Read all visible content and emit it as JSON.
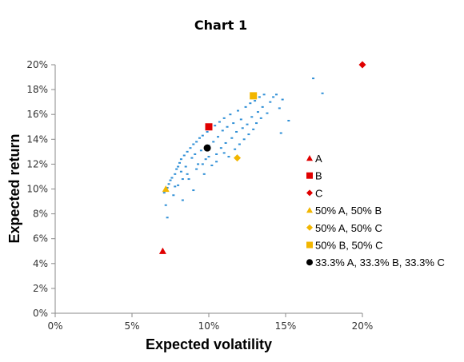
{
  "chart_data": {
    "type": "scatter",
    "title": "Chart 1",
    "xlabel": "Expected volatility",
    "ylabel": "Expected return",
    "xlim": [
      0,
      0.2
    ],
    "ylim": [
      0,
      0.2
    ],
    "x_ticks": [
      "0%",
      "5%",
      "10%",
      "15%",
      "20%"
    ],
    "y_ticks": [
      "0%",
      "2%",
      "4%",
      "6%",
      "8%",
      "10%",
      "12%",
      "14%",
      "16%",
      "18%",
      "20%"
    ],
    "grid": false,
    "legend_position": "right",
    "series": [
      {
        "name": "A",
        "marker": "triangle",
        "color": "#e00000",
        "points": [
          {
            "x": 0.07,
            "y": 0.05
          }
        ]
      },
      {
        "name": "B",
        "marker": "square",
        "color": "#e00000",
        "points": [
          {
            "x": 0.1,
            "y": 0.15
          }
        ]
      },
      {
        "name": "C",
        "marker": "diamond",
        "color": "#e00000",
        "points": [
          {
            "x": 0.2,
            "y": 0.2
          }
        ]
      },
      {
        "name": "50% A, 50% B",
        "marker": "triangle",
        "color": "#f2b600",
        "points": [
          {
            "x": 0.072,
            "y": 0.1
          }
        ]
      },
      {
        "name": "50% A, 50% C",
        "marker": "diamond",
        "color": "#f2b600",
        "points": [
          {
            "x": 0.1185,
            "y": 0.125
          }
        ]
      },
      {
        "name": "50% B, 50% C",
        "marker": "square",
        "color": "#f2b600",
        "points": [
          {
            "x": 0.129,
            "y": 0.175
          }
        ]
      },
      {
        "name": "33.3% A, 33.3% B, 33.3% C",
        "marker": "circle",
        "color": "#000000",
        "points": [
          {
            "x": 0.099,
            "y": 0.133
          }
        ]
      },
      {
        "name": "",
        "marker": "dot",
        "color": "#2f8fd6",
        "points": [
          {
            "x": 0.071,
            "y": 0.097
          },
          {
            "x": 0.072,
            "y": 0.087
          },
          {
            "x": 0.073,
            "y": 0.077
          },
          {
            "x": 0.073,
            "y": 0.101
          },
          {
            "x": 0.074,
            "y": 0.104
          },
          {
            "x": 0.075,
            "y": 0.107
          },
          {
            "x": 0.076,
            "y": 0.109
          },
          {
            "x": 0.077,
            "y": 0.095
          },
          {
            "x": 0.078,
            "y": 0.112
          },
          {
            "x": 0.079,
            "y": 0.116
          },
          {
            "x": 0.08,
            "y": 0.118
          },
          {
            "x": 0.08,
            "y": 0.103
          },
          {
            "x": 0.081,
            "y": 0.121
          },
          {
            "x": 0.082,
            "y": 0.114
          },
          {
            "x": 0.082,
            "y": 0.124
          },
          {
            "x": 0.083,
            "y": 0.091
          },
          {
            "x": 0.084,
            "y": 0.127
          },
          {
            "x": 0.085,
            "y": 0.118
          },
          {
            "x": 0.086,
            "y": 0.13
          },
          {
            "x": 0.087,
            "y": 0.108
          },
          {
            "x": 0.088,
            "y": 0.133
          },
          {
            "x": 0.089,
            "y": 0.125
          },
          {
            "x": 0.09,
            "y": 0.136
          },
          {
            "x": 0.09,
            "y": 0.099
          },
          {
            "x": 0.091,
            "y": 0.128
          },
          {
            "x": 0.092,
            "y": 0.138
          },
          {
            "x": 0.093,
            "y": 0.12
          },
          {
            "x": 0.094,
            "y": 0.141
          },
          {
            "x": 0.095,
            "y": 0.131
          },
          {
            "x": 0.096,
            "y": 0.143
          },
          {
            "x": 0.097,
            "y": 0.112
          },
          {
            "x": 0.098,
            "y": 0.124
          },
          {
            "x": 0.099,
            "y": 0.146
          },
          {
            "x": 0.1,
            "y": 0.135
          },
          {
            "x": 0.101,
            "y": 0.148
          },
          {
            "x": 0.102,
            "y": 0.119
          },
          {
            "x": 0.103,
            "y": 0.138
          },
          {
            "x": 0.104,
            "y": 0.151
          },
          {
            "x": 0.105,
            "y": 0.128
          },
          {
            "x": 0.106,
            "y": 0.142
          },
          {
            "x": 0.107,
            "y": 0.154
          },
          {
            "x": 0.108,
            "y": 0.133
          },
          {
            "x": 0.109,
            "y": 0.147
          },
          {
            "x": 0.11,
            "y": 0.157
          },
          {
            "x": 0.111,
            "y": 0.137
          },
          {
            "x": 0.112,
            "y": 0.15
          },
          {
            "x": 0.113,
            "y": 0.126
          },
          {
            "x": 0.114,
            "y": 0.16
          },
          {
            "x": 0.115,
            "y": 0.141
          },
          {
            "x": 0.116,
            "y": 0.153
          },
          {
            "x": 0.117,
            "y": 0.132
          },
          {
            "x": 0.118,
            "y": 0.146
          },
          {
            "x": 0.119,
            "y": 0.163
          },
          {
            "x": 0.12,
            "y": 0.136
          },
          {
            "x": 0.121,
            "y": 0.156
          },
          {
            "x": 0.122,
            "y": 0.149
          },
          {
            "x": 0.123,
            "y": 0.14
          },
          {
            "x": 0.124,
            "y": 0.166
          },
          {
            "x": 0.125,
            "y": 0.152
          },
          {
            "x": 0.126,
            "y": 0.144
          },
          {
            "x": 0.127,
            "y": 0.169
          },
          {
            "x": 0.128,
            "y": 0.158
          },
          {
            "x": 0.129,
            "y": 0.148
          },
          {
            "x": 0.13,
            "y": 0.171
          },
          {
            "x": 0.131,
            "y": 0.153
          },
          {
            "x": 0.132,
            "y": 0.162
          },
          {
            "x": 0.133,
            "y": 0.174
          },
          {
            "x": 0.134,
            "y": 0.157
          },
          {
            "x": 0.135,
            "y": 0.166
          },
          {
            "x": 0.136,
            "y": 0.176
          },
          {
            "x": 0.138,
            "y": 0.161
          },
          {
            "x": 0.14,
            "y": 0.17
          },
          {
            "x": 0.142,
            "y": 0.174
          },
          {
            "x": 0.144,
            "y": 0.176
          },
          {
            "x": 0.146,
            "y": 0.165
          },
          {
            "x": 0.148,
            "y": 0.172
          },
          {
            "x": 0.092,
            "y": 0.116
          },
          {
            "x": 0.086,
            "y": 0.112
          },
          {
            "x": 0.096,
            "y": 0.12
          },
          {
            "x": 0.1,
            "y": 0.126
          },
          {
            "x": 0.105,
            "y": 0.122
          },
          {
            "x": 0.11,
            "y": 0.129
          },
          {
            "x": 0.083,
            "y": 0.108
          },
          {
            "x": 0.078,
            "y": 0.102
          },
          {
            "x": 0.168,
            "y": 0.189
          },
          {
            "x": 0.174,
            "y": 0.177
          },
          {
            "x": 0.152,
            "y": 0.155
          },
          {
            "x": 0.147,
            "y": 0.145
          }
        ]
      }
    ]
  }
}
